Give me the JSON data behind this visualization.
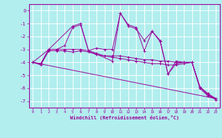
{
  "xlabel": "Windchill (Refroidissement éolien,°C)",
  "bg_color": "#b2eeee",
  "grid_color": "#aadddd",
  "line_color": "#990099",
  "xlim": [
    -0.5,
    23.5
  ],
  "ylim": [
    -7.5,
    0.5
  ],
  "yticks": [
    0,
    -1,
    -2,
    -3,
    -4,
    -5,
    -6,
    -7
  ],
  "xticks": [
    0,
    1,
    2,
    3,
    4,
    5,
    6,
    7,
    8,
    9,
    10,
    11,
    12,
    13,
    14,
    15,
    16,
    17,
    18,
    19,
    20,
    21,
    22,
    23
  ],
  "marker_lines": [
    {
      "x": [
        0,
        1,
        2,
        3,
        4,
        5,
        6,
        7,
        8,
        9,
        10,
        11,
        12,
        13,
        14,
        15,
        16,
        17,
        18,
        19,
        20,
        21,
        22,
        23
      ],
      "y": [
        -4.0,
        -4.1,
        -3.0,
        -3.0,
        -2.7,
        -1.3,
        -1.1,
        -3.1,
        -2.9,
        -3.0,
        -3.0,
        -0.2,
        -1.2,
        -1.4,
        -2.3,
        -1.6,
        -2.4,
        -4.9,
        -4.1,
        -4.0,
        -4.0,
        -5.9,
        -6.5,
        -6.8
      ]
    },
    {
      "x": [
        0,
        1,
        2,
        3,
        4,
        5,
        6,
        7,
        8,
        9,
        10,
        11,
        12,
        13,
        14,
        15,
        16,
        17,
        18,
        19,
        20,
        21,
        22,
        23
      ],
      "y": [
        -4.0,
        -4.2,
        -3.1,
        -3.1,
        -3.1,
        -3.2,
        -3.1,
        -3.2,
        -3.4,
        -3.5,
        -3.6,
        -3.7,
        -3.8,
        -3.9,
        -4.0,
        -4.1,
        -4.1,
        -4.2,
        -4.2,
        -4.1,
        -4.0,
        -6.0,
        -6.6,
        -6.8
      ]
    },
    {
      "x": [
        0,
        1,
        2,
        3,
        4,
        5,
        6,
        7,
        8,
        9,
        10,
        11,
        12,
        13,
        14,
        15,
        16,
        17,
        18,
        19,
        20,
        21,
        22,
        23
      ],
      "y": [
        -4.0,
        -4.1,
        -3.0,
        -3.0,
        -3.0,
        -3.0,
        -3.0,
        -3.1,
        -3.3,
        -3.5,
        -3.5,
        -3.5,
        -3.6,
        -3.7,
        -3.8,
        -3.8,
        -3.9,
        -3.9,
        -4.0,
        -4.0,
        -4.0,
        -5.9,
        -6.4,
        -6.8
      ]
    },
    {
      "x": [
        0,
        23
      ],
      "y": [
        -4.0,
        -6.8
      ]
    },
    {
      "x": [
        0,
        2,
        5,
        6,
        7,
        10,
        11,
        12,
        13,
        14,
        15,
        16,
        17,
        18,
        19,
        20,
        21,
        22,
        23
      ],
      "y": [
        -4.0,
        -3.0,
        -1.2,
        -1.0,
        -3.1,
        -3.9,
        -0.2,
        -1.1,
        -1.3,
        -3.1,
        -1.6,
        -2.3,
        -4.9,
        -3.9,
        -4.0,
        -4.0,
        -5.9,
        -6.5,
        -6.9
      ]
    }
  ]
}
